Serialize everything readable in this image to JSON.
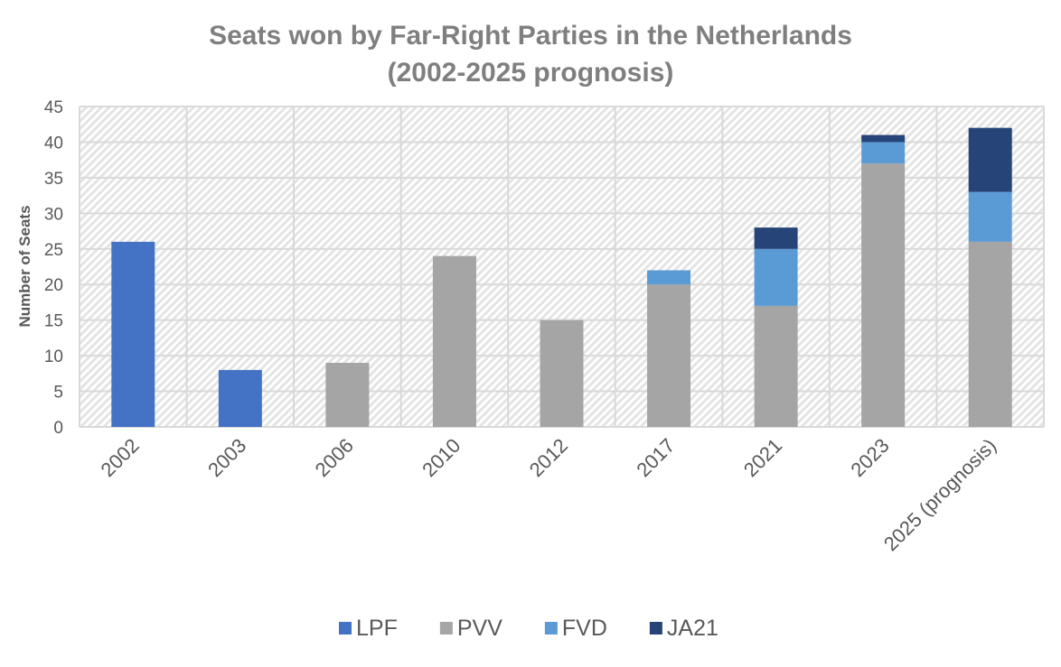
{
  "chart_data": {
    "type": "bar",
    "stacked": true,
    "title_line1": "Seats won by Far-Right Parties in the Netherlands",
    "title_line2": "(2002-2025 prognosis)",
    "xlabel": "",
    "ylabel": "Number of Seats",
    "ylim": [
      0,
      45
    ],
    "yticks": [
      0,
      5,
      10,
      15,
      20,
      25,
      30,
      35,
      40,
      45
    ],
    "grid": true,
    "legend_position": "bottom",
    "categories": [
      "2002",
      "2003",
      "2006",
      "2010",
      "2012",
      "2017",
      "2021",
      "2023",
      "2025 (prognosis)"
    ],
    "series": [
      {
        "name": "LPF",
        "color": "#4472C4",
        "values": [
          26,
          8,
          0,
          0,
          0,
          0,
          0,
          0,
          0
        ]
      },
      {
        "name": "PVV",
        "color": "#A5A5A5",
        "values": [
          0,
          0,
          9,
          24,
          15,
          20,
          17,
          37,
          26
        ]
      },
      {
        "name": "FVD",
        "color": "#5B9BD5",
        "values": [
          0,
          0,
          0,
          0,
          0,
          2,
          8,
          3,
          7
        ]
      },
      {
        "name": "JA21",
        "color": "#264478",
        "values": [
          0,
          0,
          0,
          0,
          0,
          0,
          3,
          1,
          9
        ]
      }
    ]
  }
}
